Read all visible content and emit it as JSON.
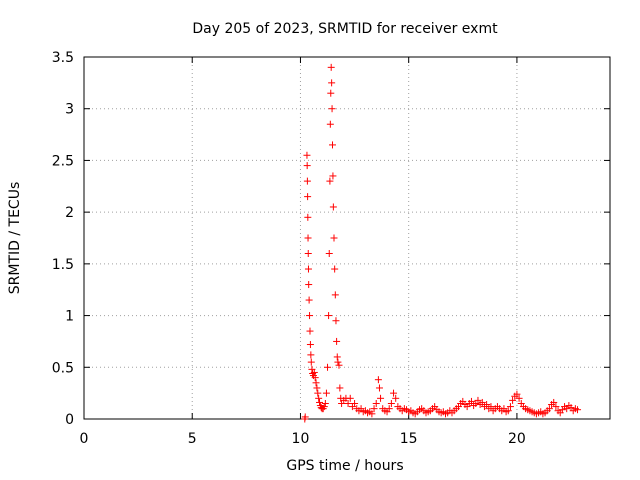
{
  "chart_data": {
    "type": "scatter",
    "title": "Day 205 of 2023, SRMTID for receiver exmt",
    "xlabel": "GPS time / hours",
    "ylabel": "SRMTID / TECUs",
    "xlim": [
      0,
      24.3
    ],
    "ylim": [
      0,
      3.5
    ],
    "x_ticks": [
      0,
      5,
      10,
      15,
      20
    ],
    "x_tick_labels": [
      "0",
      "5",
      "10",
      "15",
      "20"
    ],
    "y_ticks": [
      0,
      0.5,
      1,
      1.5,
      2,
      2.5,
      3,
      3.5
    ],
    "y_tick_labels": [
      "0",
      "0.5",
      "1",
      "1.5",
      "2",
      "2.5",
      "3",
      "3.5"
    ],
    "grid": true,
    "marker": "+",
    "series": [
      {
        "name": "SRMTID",
        "color": "#ff0000",
        "points": [
          [
            10.2,
            0.0
          ],
          [
            10.22,
            0.02
          ],
          [
            10.3,
            2.55
          ],
          [
            10.31,
            2.45
          ],
          [
            10.32,
            2.3
          ],
          [
            10.33,
            2.15
          ],
          [
            10.34,
            1.95
          ],
          [
            10.35,
            1.75
          ],
          [
            10.36,
            1.6
          ],
          [
            10.37,
            1.45
          ],
          [
            10.38,
            1.3
          ],
          [
            10.4,
            1.15
          ],
          [
            10.42,
            1.0
          ],
          [
            10.44,
            0.85
          ],
          [
            10.46,
            0.72
          ],
          [
            10.48,
            0.62
          ],
          [
            10.5,
            0.55
          ],
          [
            10.53,
            0.48
          ],
          [
            10.56,
            0.44
          ],
          [
            10.6,
            0.42
          ],
          [
            10.64,
            0.45
          ],
          [
            10.68,
            0.4
          ],
          [
            10.72,
            0.35
          ],
          [
            10.76,
            0.3
          ],
          [
            10.8,
            0.25
          ],
          [
            10.84,
            0.2
          ],
          [
            10.88,
            0.16
          ],
          [
            10.92,
            0.13
          ],
          [
            10.96,
            0.11
          ],
          [
            11.0,
            0.1
          ],
          [
            11.05,
            0.1
          ],
          [
            11.1,
            0.12
          ],
          [
            11.15,
            0.15
          ],
          [
            11.2,
            0.25
          ],
          [
            11.25,
            0.5
          ],
          [
            11.3,
            1.0
          ],
          [
            11.33,
            1.6
          ],
          [
            11.36,
            2.3
          ],
          [
            11.38,
            2.85
          ],
          [
            11.4,
            3.15
          ],
          [
            11.42,
            3.4
          ],
          [
            11.44,
            3.25
          ],
          [
            11.46,
            3.0
          ],
          [
            11.48,
            2.65
          ],
          [
            11.5,
            2.35
          ],
          [
            11.52,
            2.05
          ],
          [
            11.55,
            1.75
          ],
          [
            11.58,
            1.45
          ],
          [
            11.61,
            1.2
          ],
          [
            11.64,
            0.95
          ],
          [
            11.67,
            0.75
          ],
          [
            11.7,
            0.6
          ],
          [
            11.73,
            0.55
          ],
          [
            11.78,
            0.52
          ],
          [
            11.82,
            0.3
          ],
          [
            11.86,
            0.2
          ],
          [
            11.9,
            0.15
          ],
          [
            12.0,
            0.18
          ],
          [
            12.1,
            0.2
          ],
          [
            12.2,
            0.15
          ],
          [
            12.3,
            0.2
          ],
          [
            12.4,
            0.12
          ],
          [
            12.5,
            0.15
          ],
          [
            12.6,
            0.1
          ],
          [
            12.7,
            0.08
          ],
          [
            12.8,
            0.1
          ],
          [
            12.9,
            0.07
          ],
          [
            13.0,
            0.08
          ],
          [
            13.1,
            0.06
          ],
          [
            13.2,
            0.07
          ],
          [
            13.3,
            0.05
          ],
          [
            13.4,
            0.1
          ],
          [
            13.5,
            0.15
          ],
          [
            13.6,
            0.38
          ],
          [
            13.65,
            0.3
          ],
          [
            13.7,
            0.2
          ],
          [
            13.8,
            0.1
          ],
          [
            13.9,
            0.08
          ],
          [
            14.0,
            0.07
          ],
          [
            14.1,
            0.1
          ],
          [
            14.2,
            0.15
          ],
          [
            14.3,
            0.25
          ],
          [
            14.4,
            0.2
          ],
          [
            14.5,
            0.12
          ],
          [
            14.6,
            0.1
          ],
          [
            14.7,
            0.08
          ],
          [
            14.8,
            0.1
          ],
          [
            14.9,
            0.09
          ],
          [
            15.0,
            0.07
          ],
          [
            15.1,
            0.08
          ],
          [
            15.2,
            0.06
          ],
          [
            15.3,
            0.05
          ],
          [
            15.4,
            0.07
          ],
          [
            15.5,
            0.09
          ],
          [
            15.6,
            0.1
          ],
          [
            15.7,
            0.08
          ],
          [
            15.8,
            0.06
          ],
          [
            15.9,
            0.07
          ],
          [
            16.0,
            0.08
          ],
          [
            16.1,
            0.1
          ],
          [
            16.2,
            0.12
          ],
          [
            16.3,
            0.09
          ],
          [
            16.4,
            0.07
          ],
          [
            16.5,
            0.06
          ],
          [
            16.6,
            0.07
          ],
          [
            16.7,
            0.05
          ],
          [
            16.8,
            0.06
          ],
          [
            16.9,
            0.08
          ],
          [
            17.0,
            0.06
          ],
          [
            17.1,
            0.08
          ],
          [
            17.2,
            0.1
          ],
          [
            17.3,
            0.12
          ],
          [
            17.4,
            0.15
          ],
          [
            17.5,
            0.17
          ],
          [
            17.6,
            0.14
          ],
          [
            17.7,
            0.12
          ],
          [
            17.8,
            0.15
          ],
          [
            17.9,
            0.17
          ],
          [
            18.0,
            0.13
          ],
          [
            18.1,
            0.15
          ],
          [
            18.2,
            0.18
          ],
          [
            18.3,
            0.14
          ],
          [
            18.4,
            0.16
          ],
          [
            18.5,
            0.12
          ],
          [
            18.6,
            0.14
          ],
          [
            18.7,
            0.1
          ],
          [
            18.8,
            0.12
          ],
          [
            18.9,
            0.08
          ],
          [
            19.0,
            0.1
          ],
          [
            19.1,
            0.12
          ],
          [
            19.2,
            0.1
          ],
          [
            19.3,
            0.08
          ],
          [
            19.4,
            0.1
          ],
          [
            19.5,
            0.07
          ],
          [
            19.6,
            0.08
          ],
          [
            19.7,
            0.12
          ],
          [
            19.8,
            0.18
          ],
          [
            19.9,
            0.22
          ],
          [
            20.0,
            0.24
          ],
          [
            20.1,
            0.2
          ],
          [
            20.2,
            0.15
          ],
          [
            20.3,
            0.12
          ],
          [
            20.4,
            0.1
          ],
          [
            20.5,
            0.09
          ],
          [
            20.6,
            0.08
          ],
          [
            20.7,
            0.07
          ],
          [
            20.8,
            0.06
          ],
          [
            20.9,
            0.05
          ],
          [
            21.0,
            0.06
          ],
          [
            21.1,
            0.07
          ],
          [
            21.2,
            0.05
          ],
          [
            21.3,
            0.06
          ],
          [
            21.4,
            0.08
          ],
          [
            21.5,
            0.1
          ],
          [
            21.6,
            0.14
          ],
          [
            21.7,
            0.16
          ],
          [
            21.8,
            0.12
          ],
          [
            21.9,
            0.08
          ],
          [
            22.0,
            0.06
          ],
          [
            22.1,
            0.09
          ],
          [
            22.2,
            0.12
          ],
          [
            22.3,
            0.1
          ],
          [
            22.4,
            0.13
          ],
          [
            22.5,
            0.11
          ],
          [
            22.6,
            0.08
          ],
          [
            22.7,
            0.1
          ],
          [
            22.8,
            0.09
          ]
        ]
      }
    ]
  }
}
